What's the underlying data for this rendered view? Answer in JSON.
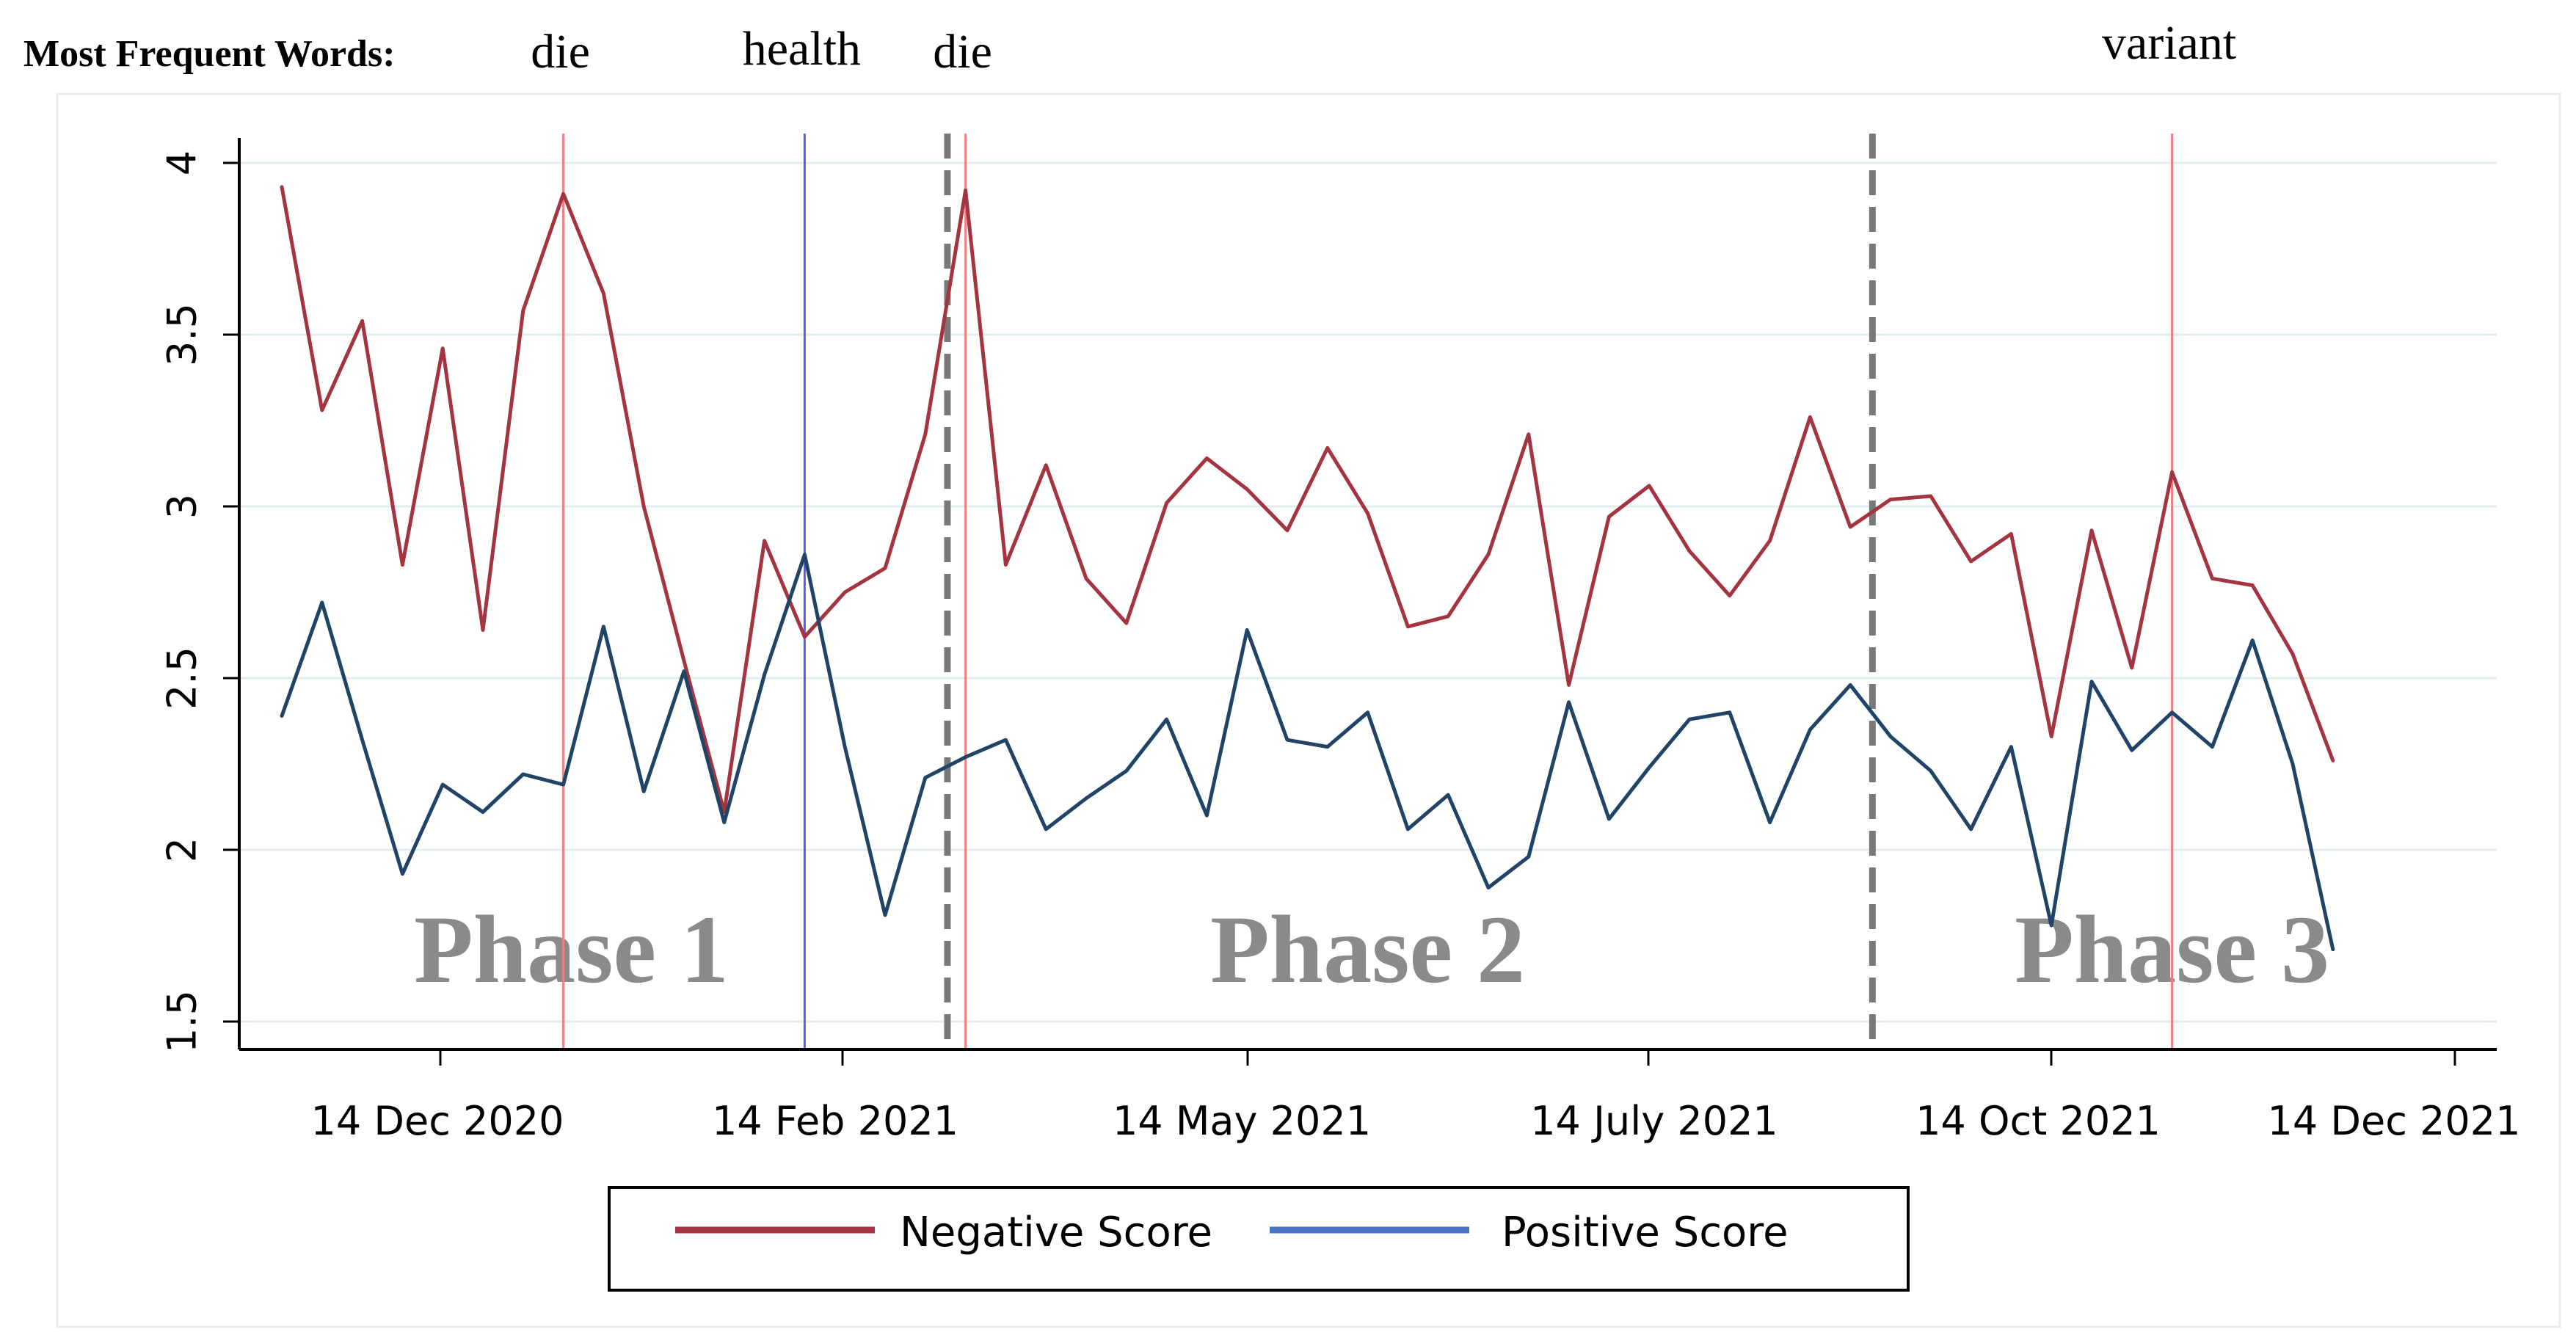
{
  "chart_data": {
    "type": "line",
    "title": "",
    "words_heading": "Most Frequent Words:",
    "ylim": [
      1.5,
      4
    ],
    "yticks": [
      "1.5",
      "2",
      "2.5",
      "3",
      "3.5",
      "4"
    ],
    "xticks": [
      "14 Dec 2020",
      "14 Feb 2021",
      "14 May 2021",
      "14 July 2021",
      "14 Oct 2021",
      "14 Dec 2021"
    ],
    "series": [
      {
        "name": "Negative Score",
        "color": "#a33440",
        "values": [
          3.93,
          3.28,
          3.54,
          2.83,
          3.46,
          2.64,
          3.57,
          3.91,
          3.62,
          3.0,
          2.55,
          2.11,
          2.9,
          2.62,
          2.75,
          2.82,
          3.21,
          3.92,
          2.83,
          3.12,
          2.79,
          2.66,
          3.01,
          3.14,
          3.05,
          2.93,
          3.17,
          2.98,
          2.65,
          2.68,
          2.86,
          3.21,
          2.48,
          2.97,
          3.06,
          2.87,
          2.74,
          2.9,
          3.26,
          2.94,
          3.02,
          3.03,
          2.84,
          2.92,
          2.33,
          2.93,
          2.53,
          3.1,
          2.79,
          2.77,
          2.57,
          2.26
        ]
      },
      {
        "name": "Positive Score",
        "color": "#1f4468",
        "legend_color": "#4a72c8",
        "values": [
          2.39,
          2.72,
          2.32,
          1.93,
          2.19,
          2.11,
          2.22,
          2.19,
          2.65,
          2.17,
          2.52,
          2.08,
          2.51,
          2.86,
          2.3,
          1.81,
          2.21,
          2.27,
          2.32,
          2.06,
          2.15,
          2.23,
          2.38,
          2.1,
          2.64,
          2.32,
          2.3,
          2.4,
          2.06,
          2.16,
          1.89,
          1.98,
          2.43,
          2.09,
          2.24,
          2.38,
          2.4,
          2.08,
          2.35,
          2.48,
          2.33,
          2.23,
          2.06,
          2.3,
          1.78,
          2.49,
          2.29,
          2.4,
          2.3,
          2.61,
          2.25,
          1.71
        ]
      }
    ],
    "event_lines": [
      {
        "index": 7,
        "word": "die",
        "color": "#f08080"
      },
      {
        "index": 13,
        "word": "health",
        "color": "#5b5bea"
      },
      {
        "index": 17,
        "word": "die",
        "color": "#f08080"
      },
      {
        "index": 47,
        "word": "variant",
        "color": "#f08080"
      }
    ],
    "phase_boundaries": [
      16,
      39
    ],
    "phases": [
      {
        "label": "Phase 1",
        "center_index": 7.2
      },
      {
        "label": "Phase 2",
        "center_index": 27
      },
      {
        "label": "Phase 3",
        "center_index": 47
      }
    ],
    "legend": {
      "position": "bottom",
      "items": [
        "Negative Score",
        "Positive Score"
      ]
    },
    "grid": true
  }
}
